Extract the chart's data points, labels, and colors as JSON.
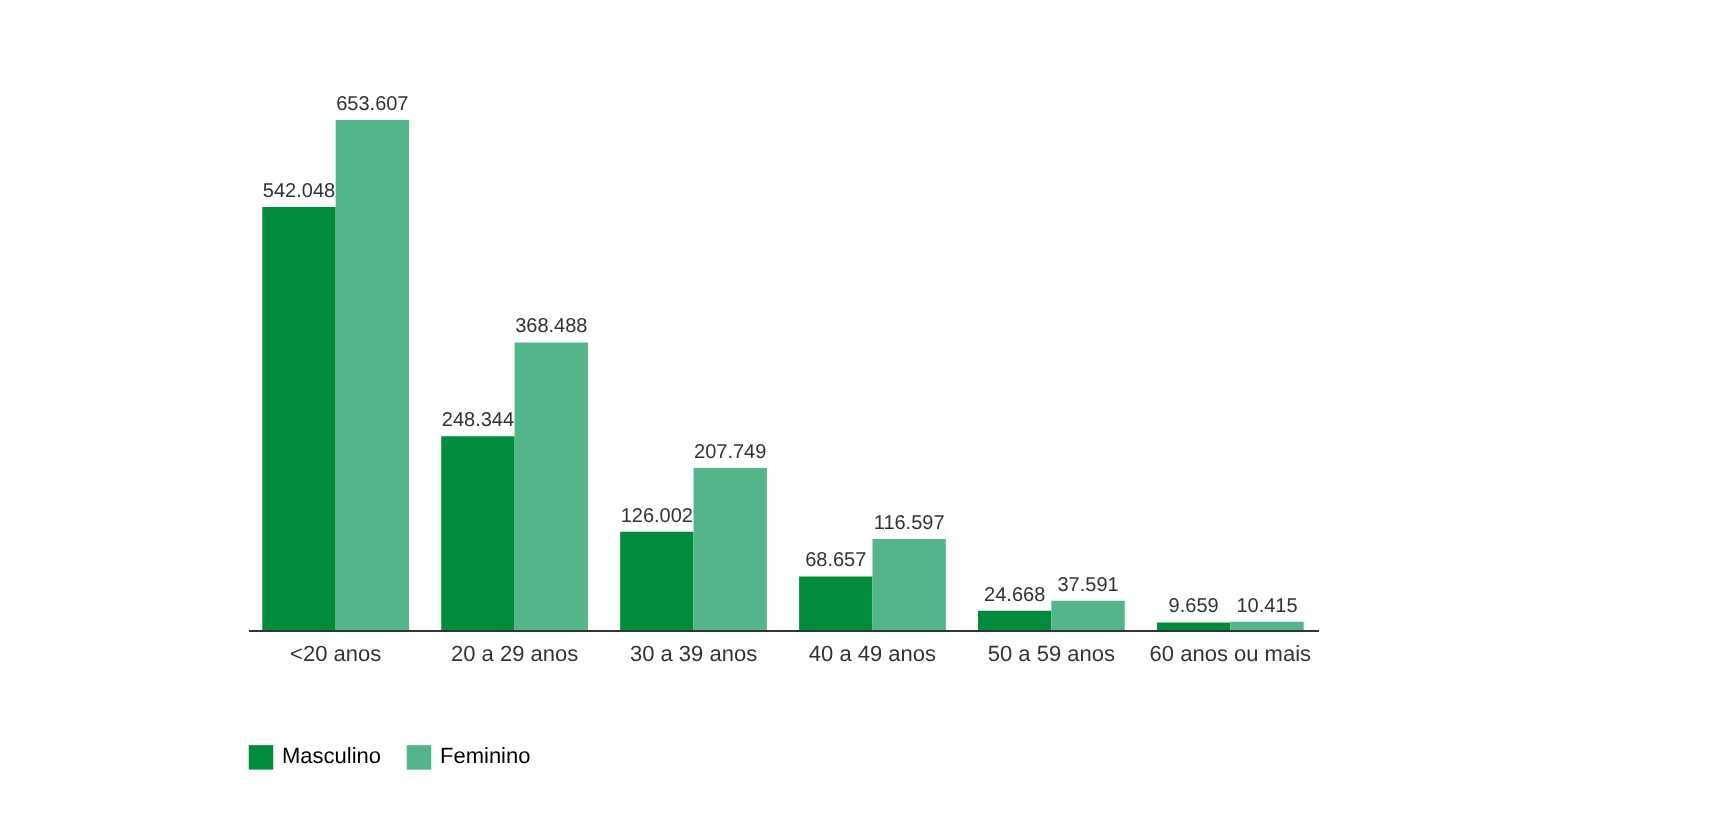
{
  "chart_data": {
    "type": "bar",
    "categories": [
      "<20 anos",
      "20 a 29 anos",
      "30 a 39 anos",
      "40 a 49 anos",
      "50 a 59 anos",
      "60 anos ou mais"
    ],
    "series": [
      {
        "name": "Masculino",
        "color": "#008c3c",
        "values": [
          542048,
          248344,
          126002,
          68657,
          24668,
          9659
        ],
        "value_labels": [
          "542.048",
          "248.344",
          "126.002",
          "68.657",
          "24.668",
          "9.659"
        ]
      },
      {
        "name": "Feminino",
        "color": "#55b58a",
        "values": [
          653607,
          368488,
          207749,
          116597,
          37591,
          10415
        ],
        "value_labels": [
          "653.607",
          "368.488",
          "207.749",
          "116.597",
          "37.591",
          "10.415"
        ]
      }
    ],
    "ylim": [
      0,
      653607
    ],
    "legend": "bottom",
    "grid": false
  }
}
